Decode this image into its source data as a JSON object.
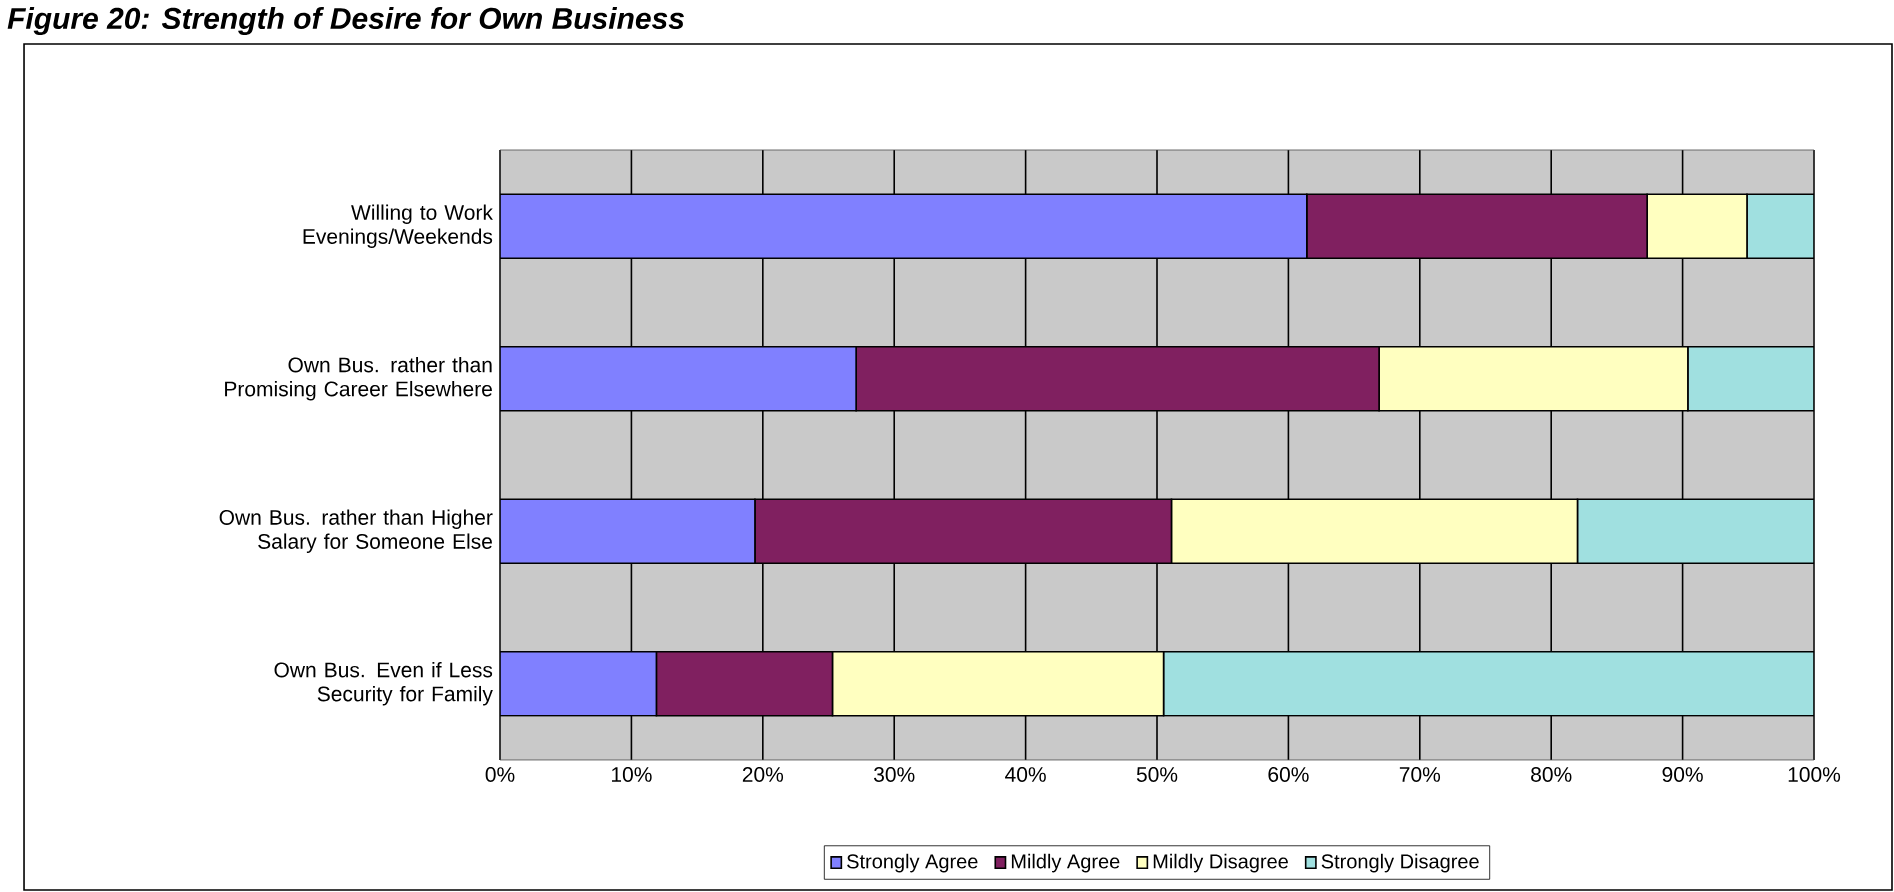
{
  "chart_data": {
    "type": "bar",
    "orientation": "horizontal",
    "stacked": true,
    "title": "Figure 20: Strength of Desire for Own Business",
    "categories": [
      "Willing to Work Evenings/Weekends",
      "Own Bus. rather than Promising Career Elsewhere",
      "Own Bus. rather than Higher Salary for Someone Else",
      "Own Bus. Even if Less Security for Family"
    ],
    "series": [
      {
        "name": "Strongly Agree",
        "color": "#8080ff",
        "values": [
          61.4,
          27.1,
          19.4,
          11.9
        ]
      },
      {
        "name": "Mildly Agree",
        "color": "#802060",
        "values": [
          25.9,
          39.8,
          31.7,
          13.4
        ]
      },
      {
        "name": "Mildly Disagree",
        "color": "#ffffc0",
        "values": [
          7.6,
          23.5,
          30.9,
          25.2
        ]
      },
      {
        "name": "Strongly Disagree",
        "color": "#a0e0e0",
        "values": [
          5.1,
          9.6,
          18.0,
          49.5
        ]
      }
    ],
    "xlim": [
      0,
      100
    ],
    "xticks": [
      {
        "value": 0,
        "label": "0%"
      },
      {
        "value": 10,
        "label": "10%"
      },
      {
        "value": 20,
        "label": "20%"
      },
      {
        "value": 30,
        "label": "30%"
      },
      {
        "value": 40,
        "label": "40%"
      },
      {
        "value": 50,
        "label": "50%"
      },
      {
        "value": 60,
        "label": "60%"
      },
      {
        "value": 70,
        "label": "70%"
      },
      {
        "value": 80,
        "label": "80%"
      },
      {
        "value": 90,
        "label": "90%"
      },
      {
        "value": 100,
        "label": "100%"
      }
    ],
    "grid": "x",
    "legend": "bottom"
  }
}
